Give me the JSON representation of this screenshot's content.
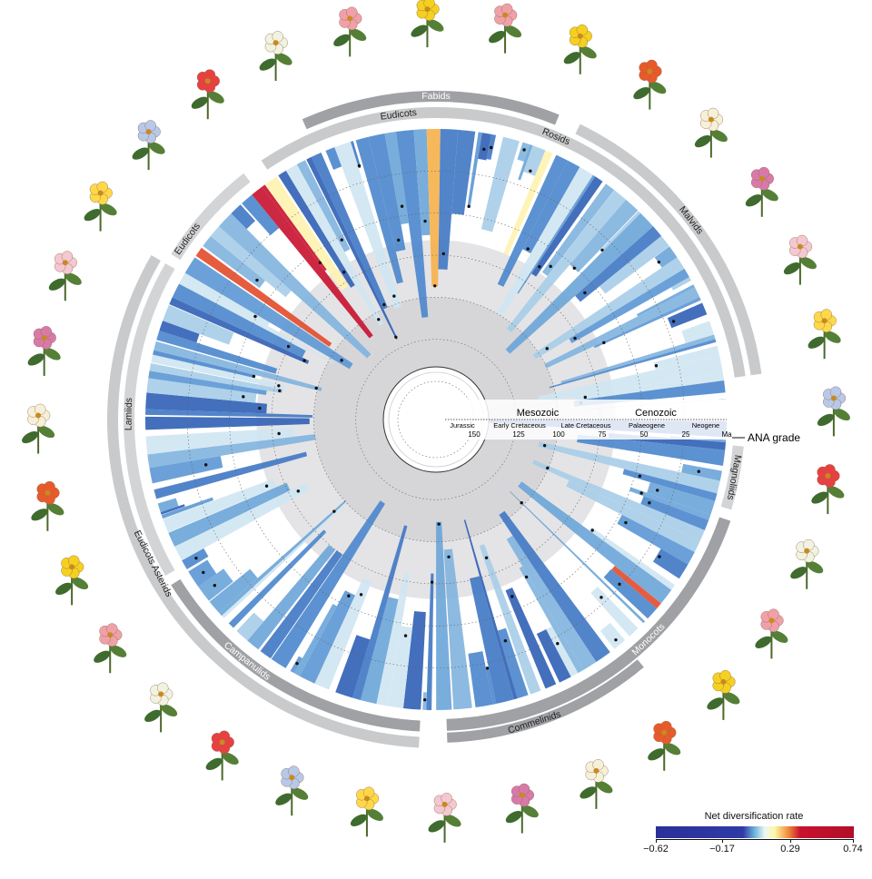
{
  "clades": [
    {
      "label": "ANA grade"
    },
    {
      "label": "Magnoliids"
    },
    {
      "label": "Monocots"
    },
    {
      "label": "Commelinids"
    },
    {
      "label": "Campanulids"
    },
    {
      "label": "Eudicots Asterids"
    },
    {
      "label": "Lamiids"
    },
    {
      "label": "Eudicots"
    },
    {
      "label": "Eudicots"
    },
    {
      "label": "Fabids"
    },
    {
      "label": "Rosids"
    },
    {
      "label": "Malvids"
    }
  ],
  "timescale": {
    "eras": [
      "Mesozoic",
      "Cenozoic"
    ],
    "periods": [
      "Jurassic",
      "Early Cretaceous",
      "Late Cretaceous",
      "Palaeogene",
      "Neogene"
    ],
    "ticks": [
      "150",
      "125",
      "100",
      "75",
      "50",
      "25"
    ],
    "unit": "Ma"
  },
  "legend": {
    "title": "Net diversification rate",
    "ticks": [
      "−0.62",
      "−0.17",
      "0.29",
      "0.74"
    ],
    "colors": [
      "#2b2f9a",
      "#6fb6d8",
      "#fff7a8",
      "#c8102e"
    ]
  }
}
